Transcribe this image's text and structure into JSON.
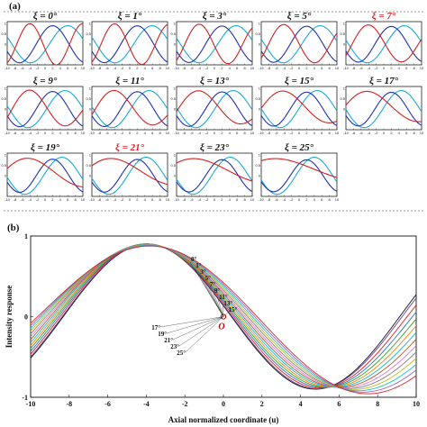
{
  "panel_a_label": "(a)",
  "panel_b_label": "(b)",
  "colors": {
    "red": "#d42020",
    "dark_blue": "#1f2fb0",
    "light_blue": "#1aa9d6",
    "highlight": "#e0202a",
    "frame": "#222222",
    "divider": "#666666"
  },
  "chart_data": [
    {
      "type": "line",
      "panel": "a",
      "description_note": "",
      "small_multiples": [
        {
          "title": "ξ = 0°",
          "xi": 0,
          "highlight": false
        },
        {
          "title": "ξ = 1°",
          "xi": 1,
          "highlight": false
        },
        {
          "title": "ξ = 3°",
          "xi": 3,
          "highlight": false
        },
        {
          "title": "ξ = 5°",
          "xi": 5,
          "highlight": false
        },
        {
          "title": "ξ = 7°",
          "xi": 7,
          "highlight": true
        },
        {
          "title": "ξ = 9°",
          "xi": 9,
          "highlight": false
        },
        {
          "title": "ξ = 11°",
          "xi": 11,
          "highlight": false
        },
        {
          "title": "ξ = 13°",
          "xi": 13,
          "highlight": false
        },
        {
          "title": "ξ = 15°",
          "xi": 15,
          "highlight": false
        },
        {
          "title": "ξ = 17°",
          "xi": 17,
          "highlight": false
        },
        {
          "title": "ξ = 19°",
          "xi": 19,
          "highlight": false
        },
        {
          "title": "ξ = 21°",
          "xi": 21,
          "highlight": true
        },
        {
          "title": "ξ = 23°",
          "xi": 23,
          "highlight": false
        },
        {
          "title": "ξ = 25°",
          "xi": 25,
          "highlight": false
        }
      ],
      "x_ticks": [
        "-10",
        "-8",
        "-6",
        "-4",
        "-2",
        "0",
        "2",
        "4",
        "6",
        "8",
        "10"
      ],
      "y_ticks": [
        "1",
        "0.5",
        "0"
      ],
      "xlim": [
        -10,
        10
      ],
      "ylim": [
        -1,
        1.1
      ]
    },
    {
      "type": "line",
      "panel": "b",
      "xlabel": "Axial normalized coordinate (u)",
      "ylabel": "Intensity response",
      "xlim": [
        -10,
        10
      ],
      "ylim": [
        -1,
        1
      ],
      "x_ticks": [
        "-10",
        "-8",
        "-6",
        "-4",
        "-2",
        "0",
        "2",
        "4",
        "6",
        "8",
        "10"
      ],
      "y_ticks": [
        "1",
        "0",
        "-1"
      ],
      "origin_label": "O",
      "upper_labels": [
        "0°",
        "1°",
        "3°",
        "5°",
        "7°",
        "9°",
        "11°",
        "13°",
        "15°"
      ],
      "lower_labels": [
        "17°",
        "19°",
        "21°",
        "23°",
        "25°"
      ],
      "series": [
        {
          "label": "0°",
          "xi": 0,
          "color": "#111111"
        },
        {
          "label": "1°",
          "xi": 1,
          "color": "#6a3d9a"
        },
        {
          "label": "3°",
          "xi": 3,
          "color": "#e31a1c"
        },
        {
          "label": "5°",
          "xi": 5,
          "color": "#1f78b4"
        },
        {
          "label": "7°",
          "xi": 7,
          "color": "#33a02c"
        },
        {
          "label": "9°",
          "xi": 9,
          "color": "#ff7f00"
        },
        {
          "label": "11°",
          "xi": 11,
          "color": "#00bcd4"
        },
        {
          "label": "13°",
          "xi": 13,
          "color": "#b15928"
        },
        {
          "label": "15°",
          "xi": 15,
          "color": "#e377c2"
        },
        {
          "label": "17°",
          "xi": 17,
          "color": "#7f7f7f"
        },
        {
          "label": "19°",
          "xi": 19,
          "color": "#bcbd22"
        },
        {
          "label": "21°",
          "xi": 21,
          "color": "#17becf"
        },
        {
          "label": "23°",
          "xi": 23,
          "color": "#9467bd"
        },
        {
          "label": "25°",
          "xi": 25,
          "color": "#d62728"
        }
      ]
    }
  ]
}
